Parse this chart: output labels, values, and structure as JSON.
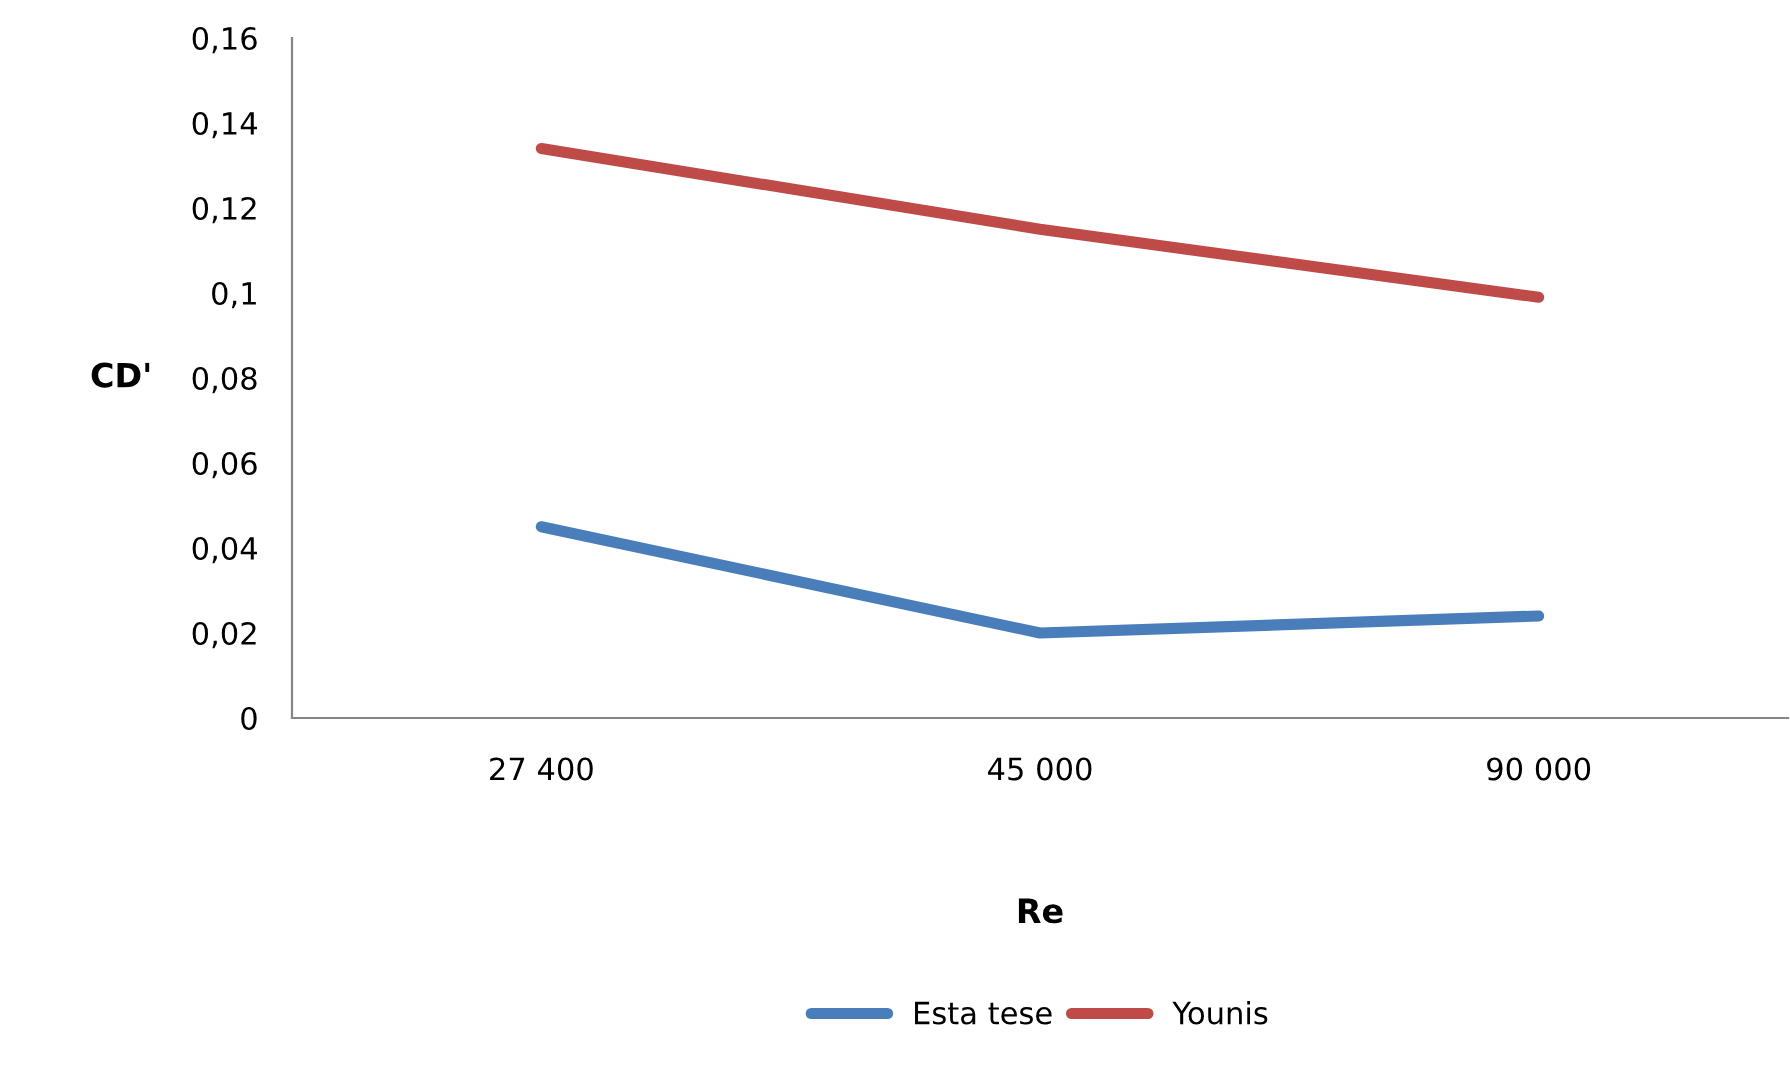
{
  "chart_data": {
    "type": "line",
    "xlabel": "Re",
    "ylabel": "CD'",
    "categories": [
      "27 400",
      "45 000",
      "90 000"
    ],
    "series": [
      {
        "name": "Esta tese",
        "color": "#4a7ebb",
        "values": [
          0.045,
          0.02,
          0.024
        ]
      },
      {
        "name": "Younis",
        "color": "#be4b48",
        "values": [
          0.134,
          0.115,
          0.099
        ]
      }
    ],
    "ylim": [
      0,
      0.16
    ],
    "yticks": [
      0,
      {
        "value": 0.02,
        "label": "0,02"
      },
      {
        "value": 0.04,
        "label": "0,04"
      },
      {
        "value": 0.06,
        "label": "0,06"
      },
      {
        "value": 0.08,
        "label": "0,08"
      },
      {
        "value": 0.1,
        "label": "0,1"
      },
      {
        "value": 0.12,
        "label": "0,12"
      },
      {
        "value": 0.14,
        "label": "0,14"
      },
      {
        "value": 0.16,
        "label": "0,16"
      }
    ],
    "grid": false,
    "legend": "bottom",
    "marker": "none",
    "line_style": "solid"
  }
}
